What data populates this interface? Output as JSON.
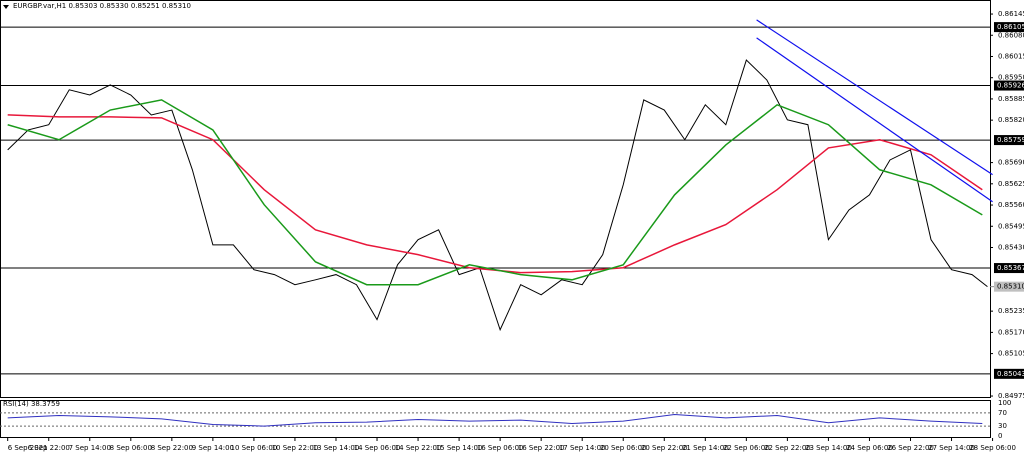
{
  "chart_data": {
    "type": "line",
    "title": "EURGBP.var,H1  0.85303 0.85330 0.85251 0.85310",
    "xlim": [
      -3,
      383
    ],
    "xticks": [
      {
        "value": 0,
        "label": "6 Sep 2021"
      },
      {
        "value": 16,
        "label": "6 Sep 22:00"
      },
      {
        "value": 32,
        "label": "7 Sep 14:00"
      },
      {
        "value": 48,
        "label": "8 Sep 06:00"
      },
      {
        "value": 64,
        "label": "8 Sep 22:00"
      },
      {
        "value": 80,
        "label": "9 Sep 14:00"
      },
      {
        "value": 96,
        "label": "10 Sep 06:00"
      },
      {
        "value": 112,
        "label": "10 Sep 22:00"
      },
      {
        "value": 128,
        "label": "13 Sep 14:00"
      },
      {
        "value": 144,
        "label": "14 Sep 06:00"
      },
      {
        "value": 160,
        "label": "14 Sep 22:00"
      },
      {
        "value": 176,
        "label": "15 Sep 14:00"
      },
      {
        "value": 192,
        "label": "16 Sep 06:00"
      },
      {
        "value": 208,
        "label": "16 Sep 22:00"
      },
      {
        "value": 224,
        "label": "17 Sep 14:00"
      },
      {
        "value": 240,
        "label": "20 Sep 06:00"
      },
      {
        "value": 256,
        "label": "20 Sep 22:00"
      },
      {
        "value": 272,
        "label": "21 Sep 14:00"
      },
      {
        "value": 288,
        "label": "22 Sep 06:00"
      },
      {
        "value": 304,
        "label": "22 Sep 22:00"
      },
      {
        "value": 320,
        "label": "23 Sep 14:00"
      },
      {
        "value": 336,
        "label": "24 Sep 06:00"
      },
      {
        "value": 352,
        "label": "26 Sep 22:00"
      },
      {
        "value": 368,
        "label": "27 Sep 14:00"
      },
      {
        "value": 384,
        "label": "28 Sep 06:00"
      }
    ],
    "ylim": [
      0.84969,
      0.86188
    ],
    "yticks": [
      0.86145,
      {
        "value": 0.8608,
        "label": "0.86080"
      },
      0.86015,
      {
        "value": 0.8595,
        "label": "0.85950"
      },
      0.85885,
      {
        "value": 0.8582,
        "label": "0.85820"
      },
      {
        "value": 0.8569,
        "label": "0.85690"
      },
      0.85625,
      {
        "value": 0.8556,
        "label": "0.85560"
      },
      0.85495,
      {
        "value": 0.8543,
        "label": "0.85430"
      },
      0.85235,
      {
        "value": 0.8517,
        "label": "0.85170"
      },
      0.85105,
      0.84975
    ],
    "levels": [
      0.86105,
      0.85926,
      0.85759,
      0.85367,
      0.85043
    ],
    "levels_color": "#000000",
    "last_price": {
      "value": 0.8531,
      "label": "0.85310"
    },
    "series": [
      {
        "color": "#000000",
        "x": [
          0,
          8,
          16,
          24,
          32,
          40,
          48,
          56,
          64,
          72,
          80,
          88,
          96,
          104,
          112,
          120,
          128,
          136,
          144,
          152,
          160,
          168,
          176,
          184,
          192,
          200,
          208,
          216,
          224,
          232,
          240,
          248,
          256,
          264,
          272,
          280,
          288,
          296,
          304,
          312,
          320,
          328,
          336,
          344,
          352,
          360,
          368,
          376,
          382
        ],
        "values": [
          0.85729,
          0.8579,
          0.85806,
          0.85913,
          0.85897,
          0.85928,
          0.85897,
          0.85836,
          0.85851,
          0.85668,
          0.85438,
          0.85438,
          0.85362,
          0.85347,
          0.85316,
          0.85331,
          0.85347,
          0.85316,
          0.85209,
          0.85377,
          0.85454,
          0.85484,
          0.85347,
          0.85368,
          0.85178,
          0.85316,
          0.85285,
          0.85331,
          0.85316,
          0.85408,
          0.85622,
          0.85882,
          0.85851,
          0.8576,
          0.85867,
          0.85806,
          0.86004,
          0.85943,
          0.85821,
          0.85806,
          0.85454,
          0.85545,
          0.85591,
          0.85698,
          0.85729,
          0.85454,
          0.85362,
          0.85347,
          0.8531
        ]
      },
      {
        "color": "#e8173a",
        "x": [
          0,
          20,
          40,
          60,
          80,
          100,
          120,
          140,
          160,
          180,
          200,
          220,
          240,
          260,
          280,
          300,
          320,
          340,
          360,
          380
        ],
        "values": [
          0.85836,
          0.8583,
          0.8583,
          0.85827,
          0.8576,
          0.85607,
          0.85484,
          0.85438,
          0.85408,
          0.85368,
          0.85353,
          0.85356,
          0.85368,
          0.85438,
          0.855,
          0.85607,
          0.85735,
          0.8576,
          0.85714,
          0.85607
        ]
      },
      {
        "color": "#1a9a1a",
        "x": [
          0,
          20,
          40,
          60,
          80,
          100,
          120,
          140,
          160,
          180,
          200,
          220,
          240,
          260,
          280,
          300,
          320,
          340,
          360,
          380
        ],
        "values": [
          0.85806,
          0.8576,
          0.85851,
          0.85882,
          0.8579,
          0.85561,
          0.85386,
          0.85316,
          0.85316,
          0.85377,
          0.85347,
          0.85331,
          0.85377,
          0.85591,
          0.85744,
          0.85867,
          0.85806,
          0.85668,
          0.85622,
          0.8553
        ]
      }
    ],
    "trendlines": [
      {
        "color": "#1010ee",
        "x": [
          292,
          384
        ],
        "values": [
          0.86127,
          0.85653
        ]
      },
      {
        "color": "#1010ee",
        "x": [
          292,
          384
        ],
        "values": [
          0.86072,
          0.8557
        ]
      }
    ],
    "rsi": {
      "title": "RSI(14) 38.3759",
      "color": "#3030c0",
      "ylim": [
        0,
        100
      ],
      "yticks": [
        100,
        70,
        30,
        0
      ],
      "x": [
        0,
        20,
        40,
        60,
        80,
        100,
        120,
        140,
        160,
        180,
        200,
        220,
        240,
        260,
        280,
        300,
        320,
        340,
        360,
        380
      ],
      "values": [
        55,
        62,
        58,
        52,
        35,
        30,
        40,
        42,
        50,
        45,
        48,
        38,
        45,
        65,
        55,
        62,
        40,
        55,
        45,
        38
      ]
    }
  }
}
